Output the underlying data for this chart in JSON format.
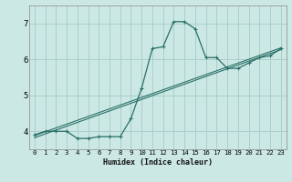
{
  "xlabel": "Humidex (Indice chaleur)",
  "bg_color": "#cce8e4",
  "grid_color": "#aacfca",
  "line_color": "#2a7068",
  "curve_x": [
    0,
    1,
    2,
    3,
    4,
    5,
    6,
    7,
    8,
    9,
    10,
    11,
    12,
    13,
    14,
    15,
    16,
    17,
    18,
    19,
    20,
    21,
    22,
    23
  ],
  "curve_y": [
    3.9,
    4.0,
    4.0,
    4.0,
    3.8,
    3.8,
    3.85,
    3.85,
    3.85,
    4.35,
    5.2,
    6.3,
    6.35,
    7.05,
    7.05,
    6.85,
    6.05,
    6.05,
    5.75,
    5.75,
    5.9,
    6.05,
    6.1,
    6.3
  ],
  "line1_x": [
    0,
    23
  ],
  "line1_y": [
    3.88,
    6.32
  ],
  "line2_x": [
    0,
    23
  ],
  "line2_y": [
    3.82,
    6.27
  ],
  "xlim": [
    -0.5,
    23.5
  ],
  "ylim": [
    3.5,
    7.5
  ],
  "yticks": [
    4,
    5,
    6,
    7
  ],
  "xticks": [
    0,
    1,
    2,
    3,
    4,
    5,
    6,
    7,
    8,
    9,
    10,
    11,
    12,
    13,
    14,
    15,
    16,
    17,
    18,
    19,
    20,
    21,
    22,
    23
  ]
}
